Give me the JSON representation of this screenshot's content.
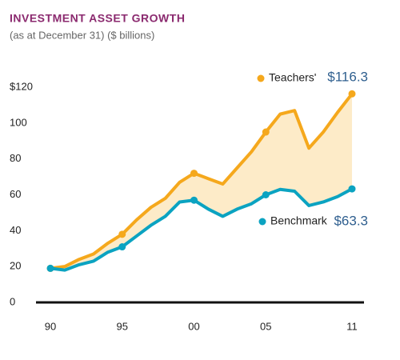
{
  "chart_data": {
    "type": "line",
    "title": "INVESTMENT ASSET GROWTH",
    "subtitle": "(as at December 31) ($ billions)",
    "categories": [
      "90",
      null,
      null,
      null,
      null,
      "95",
      null,
      null,
      null,
      null,
      "00",
      null,
      null,
      null,
      null,
      "05",
      null,
      null,
      null,
      null,
      null,
      "11"
    ],
    "series": [
      {
        "name": "Teachers'",
        "color": "#f5a81c",
        "values": [
          19,
          20,
          24,
          27,
          33,
          38,
          46,
          53,
          58,
          67,
          72,
          69,
          66,
          75,
          84,
          95,
          105,
          107,
          86,
          95,
          106,
          116.3
        ],
        "end_label": "$116.3"
      },
      {
        "name": "Benchmark",
        "color": "#0ba3c1",
        "values": [
          19,
          18,
          21,
          23,
          28,
          31,
          37,
          43,
          48,
          56,
          57,
          52,
          48,
          52,
          55,
          60,
          63,
          62,
          54,
          56,
          59,
          63.3
        ],
        "end_label": "$63.3"
      }
    ],
    "fill_between_color": "#fdebc8",
    "ylim": [
      0,
      120
    ],
    "yticks": [
      0,
      20,
      40,
      60,
      80,
      100,
      {
        "value": 120,
        "label": "$120"
      }
    ]
  }
}
